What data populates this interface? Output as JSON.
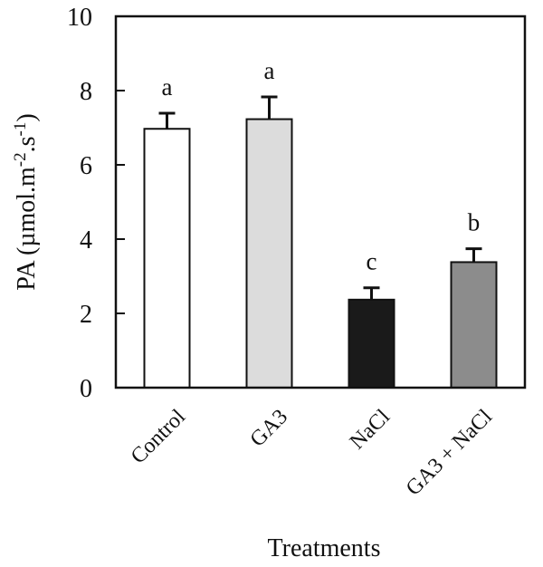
{
  "chart_data": {
    "type": "bar",
    "categories": [
      "Control",
      "GA3",
      "NaCl",
      "GA3 + NaCl"
    ],
    "values": [
      6.97,
      7.23,
      2.37,
      3.38
    ],
    "errors": [
      0.42,
      0.6,
      0.32,
      0.36
    ],
    "significance": [
      "a",
      "a",
      "c",
      "b"
    ],
    "bar_colors": [
      "#ffffff",
      "#dcdcdc",
      "#1a1a1a",
      "#8c8c8c"
    ],
    "xlabel": "Treatments",
    "ylabel": {
      "prefix": "PA (µmol.m",
      "sup1": "-2",
      "mid": ".s",
      "sup2": "-1",
      "suffix": ")"
    },
    "ylim": [
      0,
      10
    ],
    "yticks": [
      0,
      2,
      4,
      6,
      8,
      10
    ],
    "grid": false,
    "legend": "none"
  }
}
